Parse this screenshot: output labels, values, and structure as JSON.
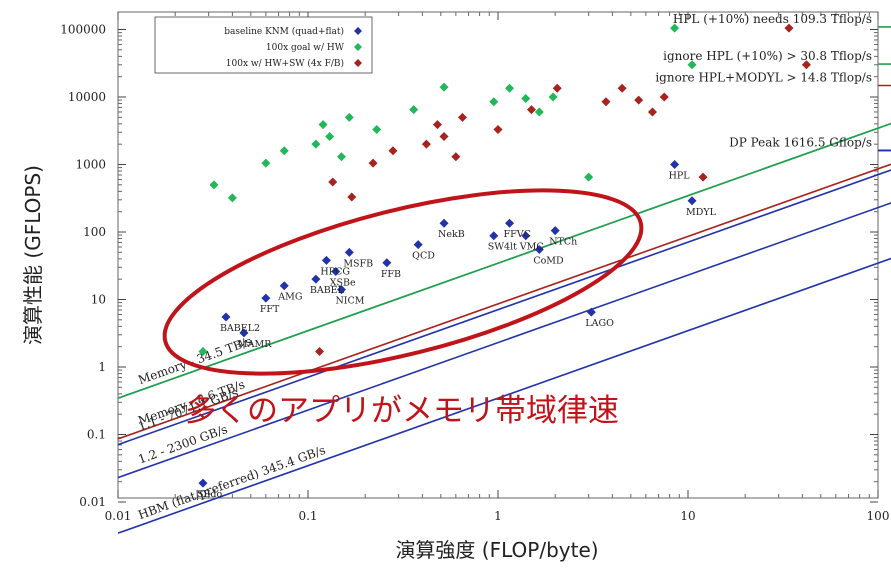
{
  "chart_data": {
    "type": "scatter",
    "xscale": "log",
    "yscale": "log",
    "xlim": [
      0.01,
      100
    ],
    "ylim": [
      0.01,
      200000
    ],
    "xticks": [
      {
        "value": 0.01,
        "label": "0.01"
      },
      {
        "value": 0.1,
        "label": "0.1"
      },
      {
        "value": 1,
        "label": "1"
      },
      {
        "value": 10,
        "label": "10"
      },
      {
        "value": 100,
        "label": "100"
      }
    ],
    "yticks": [
      {
        "value": 0.01,
        "label": "0.01"
      },
      {
        "value": 0.1,
        "label": "0.1"
      },
      {
        "value": 1,
        "label": "1"
      },
      {
        "value": 10,
        "label": "10"
      },
      {
        "value": 100,
        "label": "100"
      },
      {
        "value": 1000,
        "label": "1000"
      },
      {
        "value": 10000,
        "label": "10000"
      },
      {
        "value": 100000,
        "label": "100000"
      }
    ],
    "xlabel": "演算強度 (FLOP/byte)",
    "ylabel": "演算性能 (GFLOPS)",
    "legend_position": "top-left",
    "series": [
      {
        "name": "baseline KNM (quad+flat)",
        "color": "#2233aa",
        "points": [
          {
            "x": 0.028,
            "y": 0.019,
            "label": "SEdo"
          },
          {
            "x": 0.037,
            "y": 5.5,
            "label": "BABEL2"
          },
          {
            "x": 0.046,
            "y": 3.2,
            "label": "MAMR"
          },
          {
            "x": 0.06,
            "y": 10.5,
            "label": "FFT"
          },
          {
            "x": 0.075,
            "y": 16,
            "label": "AMG"
          },
          {
            "x": 0.11,
            "y": 20,
            "label": "BABEL"
          },
          {
            "x": 0.125,
            "y": 38,
            "label": "HPCG"
          },
          {
            "x": 0.14,
            "y": 26,
            "label": "XSBe"
          },
          {
            "x": 0.15,
            "y": 14,
            "label": "NICM"
          },
          {
            "x": 0.165,
            "y": 50,
            "label": "MSFB"
          },
          {
            "x": 0.26,
            "y": 35,
            "label": "FFB"
          },
          {
            "x": 0.38,
            "y": 65,
            "label": "QCD"
          },
          {
            "x": 0.52,
            "y": 135,
            "label": "NekB"
          },
          {
            "x": 0.95,
            "y": 88,
            "label": "SW4lt"
          },
          {
            "x": 1.15,
            "y": 135,
            "label": "FFVC"
          },
          {
            "x": 1.4,
            "y": 88,
            "label": "VMC"
          },
          {
            "x": 1.65,
            "y": 55,
            "label": "CoMD"
          },
          {
            "x": 2.0,
            "y": 105,
            "label": "NTCh"
          },
          {
            "x": 3.1,
            "y": 6.5,
            "label": "LAGO"
          },
          {
            "x": 8.5,
            "y": 1000,
            "label": "HPL"
          },
          {
            "x": 10.5,
            "y": 290,
            "label": "MDYL"
          }
        ]
      },
      {
        "name": "100x goal w/ HW",
        "color": "#22b85a",
        "points": [
          {
            "x": 0.028,
            "y": 1.7
          },
          {
            "x": 0.032,
            "y": 500
          },
          {
            "x": 0.04,
            "y": 320
          },
          {
            "x": 0.06,
            "y": 1050
          },
          {
            "x": 0.075,
            "y": 1600
          },
          {
            "x": 0.11,
            "y": 2000
          },
          {
            "x": 0.12,
            "y": 3900
          },
          {
            "x": 0.13,
            "y": 2600
          },
          {
            "x": 0.15,
            "y": 1300
          },
          {
            "x": 0.165,
            "y": 5000
          },
          {
            "x": 0.23,
            "y": 3300
          },
          {
            "x": 0.36,
            "y": 6500
          },
          {
            "x": 0.52,
            "y": 14000
          },
          {
            "x": 0.95,
            "y": 8500
          },
          {
            "x": 1.15,
            "y": 13500
          },
          {
            "x": 1.4,
            "y": 9500
          },
          {
            "x": 1.65,
            "y": 6000
          },
          {
            "x": 1.95,
            "y": 10000
          },
          {
            "x": 3.0,
            "y": 650
          },
          {
            "x": 8.5,
            "y": 105000
          },
          {
            "x": 10.5,
            "y": 30000
          }
        ]
      },
      {
        "name": "100x w/ HW+SW (4x F/B)",
        "color": "#a8231e",
        "points": [
          {
            "x": 0.115,
            "y": 1.7
          },
          {
            "x": 0.135,
            "y": 550
          },
          {
            "x": 0.17,
            "y": 330
          },
          {
            "x": 0.22,
            "y": 1050
          },
          {
            "x": 0.28,
            "y": 1600
          },
          {
            "x": 0.42,
            "y": 2000
          },
          {
            "x": 0.48,
            "y": 3900
          },
          {
            "x": 0.52,
            "y": 2600
          },
          {
            "x": 0.6,
            "y": 1300
          },
          {
            "x": 0.65,
            "y": 5000
          },
          {
            "x": 1.0,
            "y": 3300
          },
          {
            "x": 1.5,
            "y": 6500
          },
          {
            "x": 2.05,
            "y": 13500
          },
          {
            "x": 3.7,
            "y": 8500
          },
          {
            "x": 4.5,
            "y": 13500
          },
          {
            "x": 5.5,
            "y": 9000
          },
          {
            "x": 6.5,
            "y": 6000
          },
          {
            "x": 7.5,
            "y": 10000
          },
          {
            "x": 12,
            "y": 650
          },
          {
            "x": 34,
            "y": 105000
          },
          {
            "x": 42,
            "y": 30000
          }
        ]
      }
    ],
    "rooflines": [
      {
        "label": "Memory - 34.5 TB/s",
        "bandwidth": 34500,
        "peak": 109300,
        "color": "#22a050",
        "peak_label": "HPL (+10%) needs 109.3 Tflop/s"
      },
      {
        "label": "",
        "bandwidth": 34500,
        "peak": 30800,
        "color": "#22a050",
        "peak_label": "ignore HPL (+10%) > 30.8 Tflop/s"
      },
      {
        "label": "Memory - 8.6 TB/s",
        "bandwidth": 8600,
        "peak": 14800,
        "color": "#a8231e",
        "peak_label": "ignore HPL+MODYL > 14.8 Tflop/s"
      },
      {
        "label": "1.1 - 7071.1 GB/s",
        "bandwidth": 7071.1,
        "peak": 1616.5,
        "color": "#2233aa",
        "peak_label": "DP Peak 1616.5 Gflop/s"
      },
      {
        "label": "1.2 - 2300 GB/s",
        "bandwidth": 2300,
        "peak": 1616.5,
        "color": "#2233aa",
        "peak_label": ""
      },
      {
        "label": "HBM (flat/preferred) 345.4 GB/s",
        "bandwidth": 345.4,
        "peak": 1616.5,
        "color": "#2233aa",
        "peak_label": ""
      }
    ],
    "annotation": {
      "text": "多くのアプリがメモリ帯域律速",
      "color": "#c0141a"
    }
  }
}
